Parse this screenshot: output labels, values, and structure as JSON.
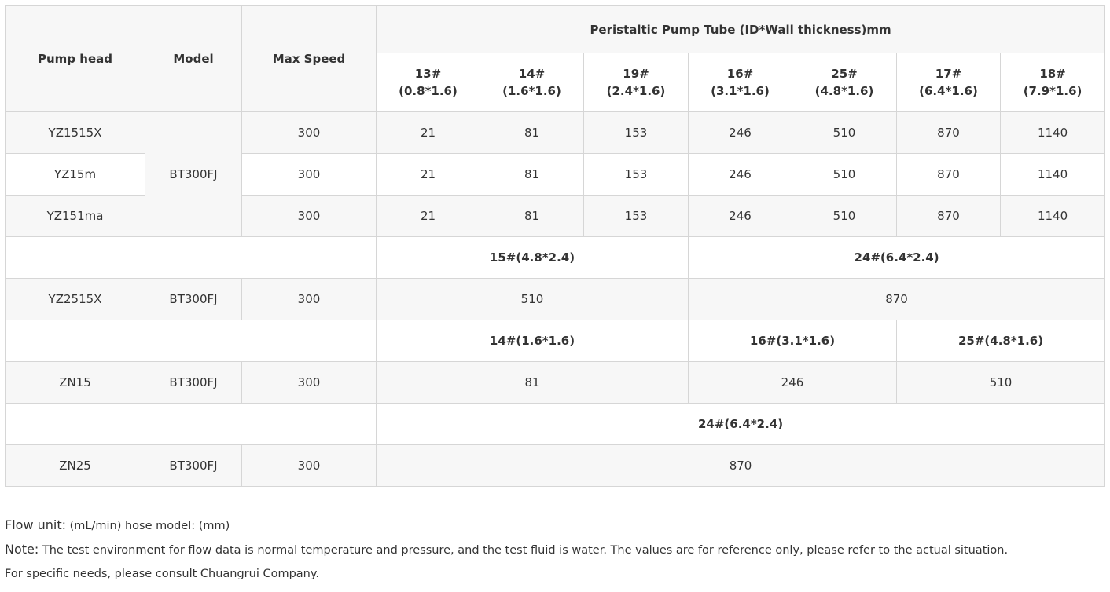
{
  "header": {
    "pump_head": "Pump head",
    "model": "Model",
    "max_speed": "Max Speed",
    "tube_group": "Peristaltic Pump  Tube (ID*Wall thickness)mm",
    "tubes": [
      {
        "no": "13#",
        "size": "(0.8*1.6)"
      },
      {
        "no": "14#",
        "size": "(1.6*1.6)"
      },
      {
        "no": "19#",
        "size": "(2.4*1.6)"
      },
      {
        "no": "16#",
        "size": "(3.1*1.6)"
      },
      {
        "no": "25#",
        "size": "(4.8*1.6)"
      },
      {
        "no": "17#",
        "size": "(6.4*1.6)"
      },
      {
        "no": "18#",
        "size": "(7.9*1.6)"
      }
    ]
  },
  "group1": {
    "model": "BT300FJ",
    "rows": [
      {
        "head": "YZ1515X",
        "speed": "300",
        "values": [
          "21",
          "81",
          "153",
          "246",
          "510",
          "870",
          "1140"
        ]
      },
      {
        "head": "YZ15m",
        "speed": "300",
        "values": [
          "21",
          "81",
          "153",
          "246",
          "510",
          "870",
          "1140"
        ]
      },
      {
        "head": "YZ151ma",
        "speed": "300",
        "values": [
          "21",
          "81",
          "153",
          "246",
          "510",
          "870",
          "1140"
        ]
      }
    ]
  },
  "group2": {
    "tubes": [
      "15#(4.8*2.4)",
      "24#(6.4*2.4)"
    ],
    "row": {
      "head": "YZ2515X",
      "model": "BT300FJ",
      "speed": "300",
      "values": [
        "510",
        "870"
      ]
    }
  },
  "group3": {
    "tubes": [
      "14#(1.6*1.6)",
      "16#(3.1*1.6)",
      "25#(4.8*1.6)"
    ],
    "row": {
      "head": "ZN15",
      "model": "BT300FJ",
      "speed": "300",
      "values": [
        "81",
        "246",
        "510"
      ]
    }
  },
  "group4": {
    "tubes": [
      "24#(6.4*2.4)"
    ],
    "row": {
      "head": "ZN25",
      "model": "BT300FJ",
      "speed": "300",
      "values": [
        "870"
      ]
    }
  },
  "notes": {
    "flow_label": "Flow unit:",
    "flow_text": " (mL/min) hose model: (mm)",
    "note_label": "Note:",
    "note_text": " The test environment for flow data is normal temperature and pressure, and the test fluid is water. The values are for reference only, please refer to the actual situation.",
    "consult": "For specific needs, please consult Chuangrui Company."
  }
}
